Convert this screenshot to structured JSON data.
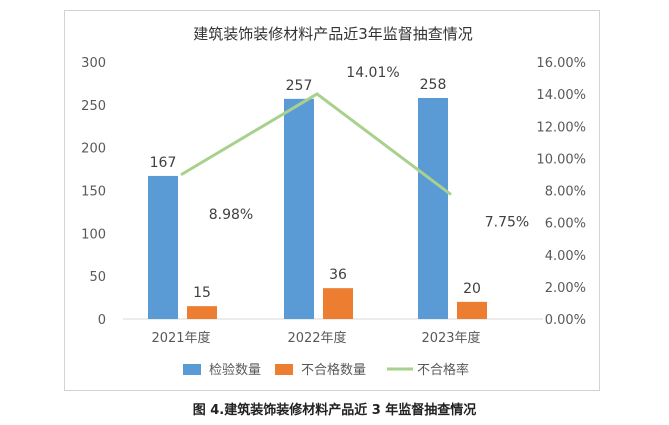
{
  "caption": "图 4.建筑装饰装修材料产品近 3 年监督抽查情况",
  "chart_data": {
    "type": "bar",
    "title": "建筑装饰装修材料产品近3年监督抽查情况",
    "categories": [
      "2021年度",
      "2022年度",
      "2023年度"
    ],
    "series": [
      {
        "name": "检验数量",
        "type": "bar",
        "axis": "left",
        "color": "#5b9bd5",
        "values": [
          167,
          257,
          258
        ]
      },
      {
        "name": "不合格数量",
        "type": "bar",
        "axis": "left",
        "color": "#ed7d31",
        "values": [
          15,
          36,
          20
        ]
      },
      {
        "name": "不合格率",
        "type": "line",
        "axis": "right",
        "color": "#a9d18e",
        "values": [
          8.98,
          14.01,
          7.75
        ],
        "labels": [
          "8.98%",
          "14.01%",
          "7.75%"
        ]
      }
    ],
    "y_left": {
      "range": [
        0,
        300
      ],
      "ticks": [
        "0",
        "50",
        "100",
        "150",
        "200",
        "250",
        "300"
      ]
    },
    "y_right": {
      "range": [
        0,
        16
      ],
      "ticks": [
        "0.00%",
        "2.00%",
        "4.00%",
        "6.00%",
        "8.00%",
        "10.00%",
        "12.00%",
        "14.00%",
        "16.00%"
      ]
    },
    "legend_position": "bottom",
    "grid": false
  }
}
